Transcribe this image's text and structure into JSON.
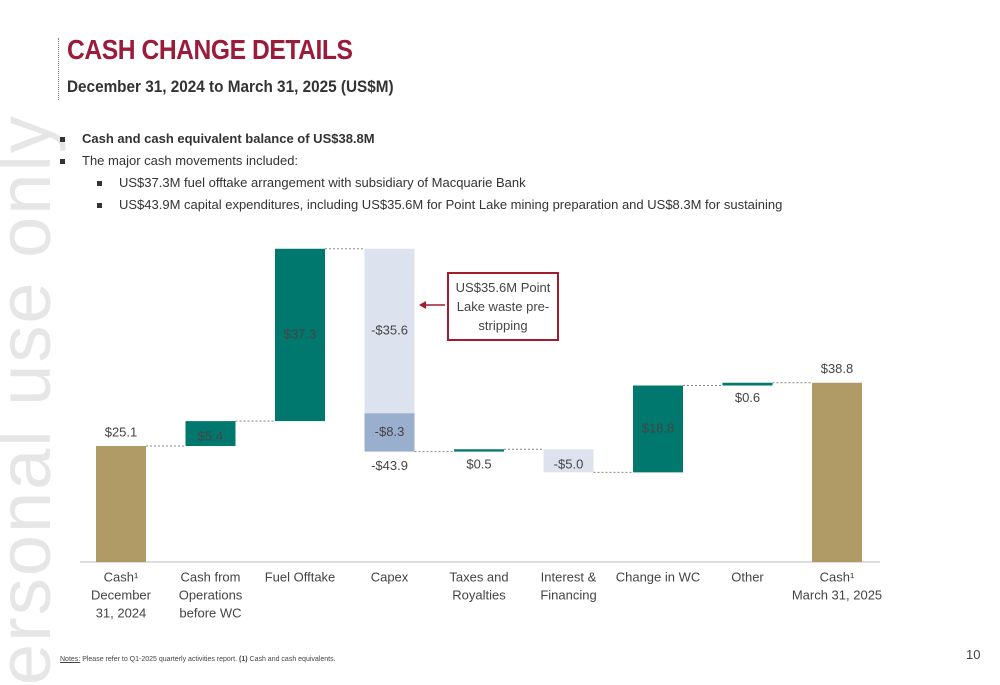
{
  "header": {
    "title": "CASH CHANGE DETAILS",
    "subtitle": "December 31, 2024 to March 31, 2025 (US$M)"
  },
  "bullets": [
    {
      "text": "Cash and cash equivalent balance of US$38.8M",
      "bold": true
    },
    {
      "text": "The major cash movements included:",
      "children": [
        {
          "text": "US$37.3M fuel offtake arrangement with subsidiary of Macquarie Bank"
        },
        {
          "text": "US$43.9M capital expenditures, including US$35.6M for Point Lake mining preparation and US$8.3M for sustaining"
        }
      ]
    }
  ],
  "chart_data": {
    "type": "waterfall",
    "categories": [
      [
        "Cash¹",
        "December",
        "31, 2024"
      ],
      [
        "Cash from",
        "Operations",
        "before WC"
      ],
      [
        "Fuel Offtake"
      ],
      [
        "Capex"
      ],
      [
        "Taxes and",
        "Royalties"
      ],
      [
        "Interest &",
        "Financing"
      ],
      [
        "Change in WC"
      ],
      [
        "Other"
      ],
      [
        "Cash¹",
        "March 31, 2025"
      ]
    ],
    "values": [
      25.1,
      5.4,
      37.3,
      -43.9,
      0.5,
      -5.0,
      18.8,
      0.6,
      38.8
    ],
    "value_labels": [
      "$25.1",
      "$5.4",
      "$37.3",
      "-$43.9",
      "$0.5",
      "-$5.0",
      "$18.8",
      "$0.6",
      "$38.8"
    ],
    "colors": [
      "#b09a66",
      "#00786e",
      "#00786e",
      "#dce3ee",
      "#00786e",
      "#dce3ee",
      "#00786e",
      "#00786e",
      "#b09a66"
    ],
    "capex_parts": {
      "values": [
        -35.6,
        -8.3
      ],
      "value_labels": [
        "-$35.6",
        "-$8.3"
      ],
      "colors": [
        "#dce3ee",
        "#9aaecd"
      ]
    },
    "annotation": "US$35.6M Point Lake waste pre-stripping"
  },
  "watermark": "ersonal use only",
  "notes": {
    "label": "Notes:",
    "text": "Please refer to Q1-2025 quarterly activities report.",
    "ref": "(1)",
    "ref_text": "Cash and cash equivalents."
  },
  "page_number": "10"
}
